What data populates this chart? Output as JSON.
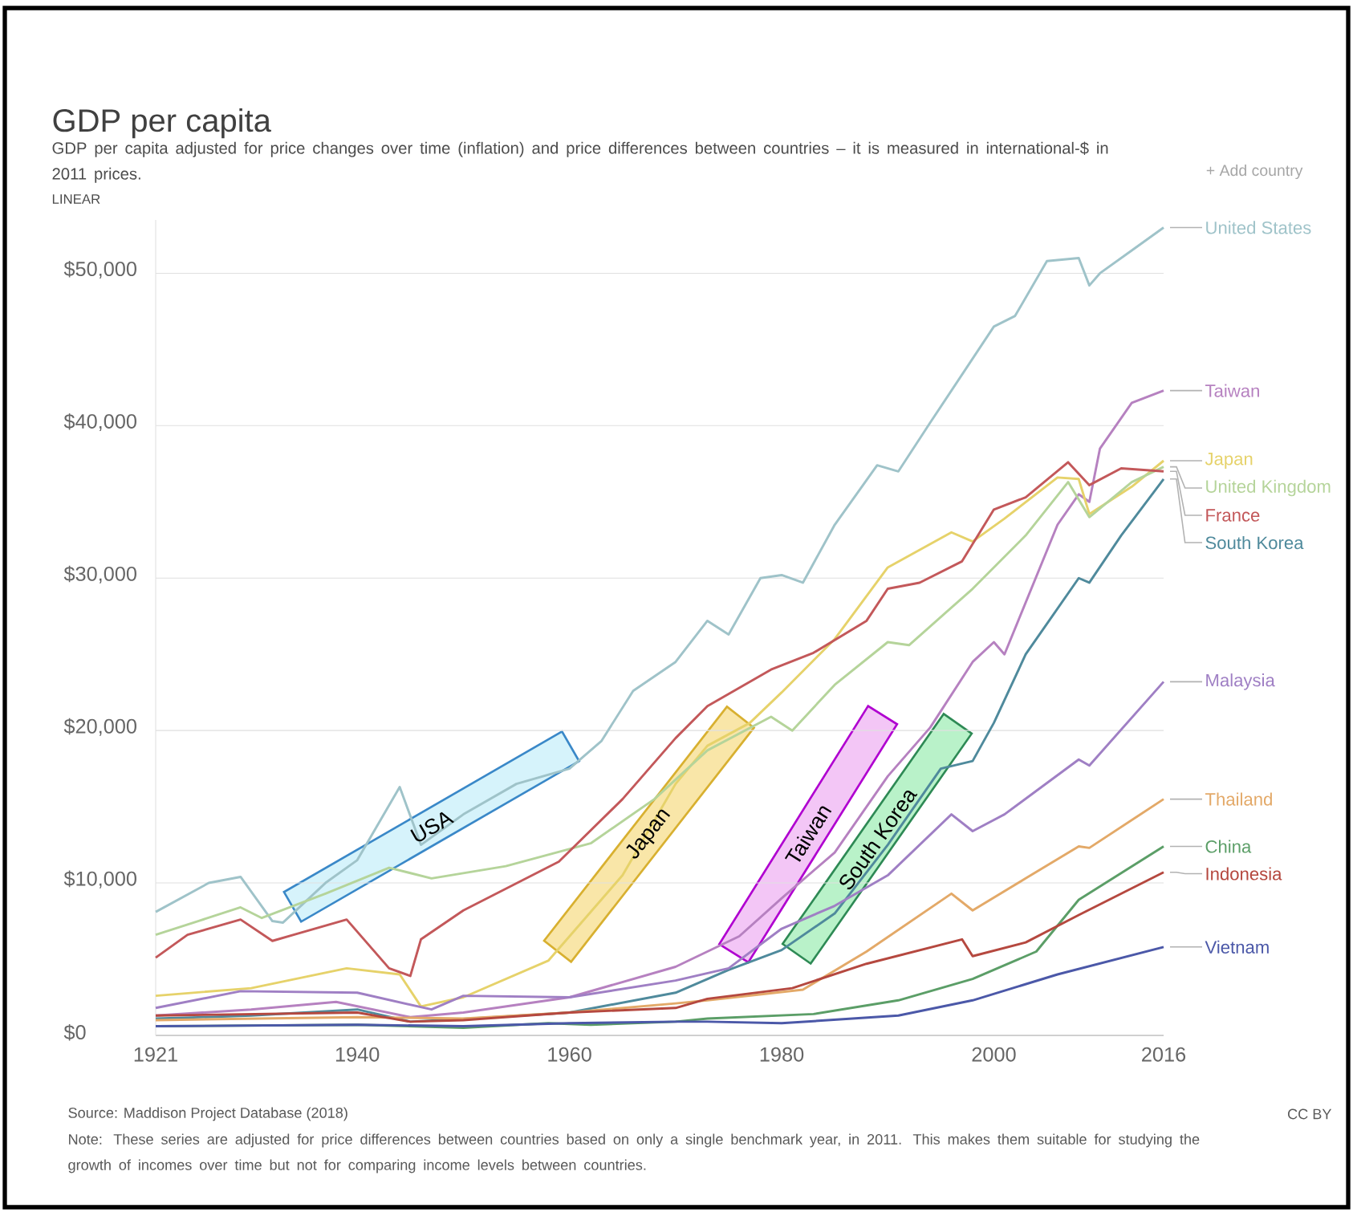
{
  "chart_data": {
    "type": "line",
    "title": "GDP per capita",
    "subtitle": "GDP per capita adjusted for price changes over time (inflation) and price differences between countries – it is measured in international-$ in 2011 prices.",
    "xlim": [
      1921,
      2016
    ],
    "xticks": [
      1921,
      1940,
      1960,
      1980,
      2000,
      2016
    ],
    "ylim": [
      0,
      53500
    ],
    "yticks": [
      {
        "value": 0,
        "label": "$0"
      },
      {
        "value": 10000,
        "label": "$10,000"
      },
      {
        "value": 20000,
        "label": "$20,000"
      },
      {
        "value": 30000,
        "label": "$30,000"
      },
      {
        "value": 40000,
        "label": "$40,000"
      },
      {
        "value": 50000,
        "label": "$50,000"
      }
    ],
    "grid": "y",
    "series": [
      {
        "name": "United States",
        "color": "#9fc3c9",
        "x": [
          1921,
          1926,
          1929,
          1932,
          1933,
          1937,
          1940,
          1944,
          1946,
          1950,
          1955,
          1960,
          1963,
          1966,
          1970,
          1973,
          1975,
          1978,
          1980,
          1982,
          1985,
          1989,
          1991,
          1994,
          2000,
          2002,
          2005,
          2008,
          2009,
          2010,
          2013,
          2016
        ],
        "values": [
          8100,
          10000,
          10400,
          7500,
          7400,
          10000,
          11500,
          16300,
          12500,
          14500,
          16500,
          17500,
          19300,
          22600,
          24500,
          27200,
          26300,
          30000,
          30200,
          29700,
          33500,
          37400,
          37000,
          40200,
          46500,
          47200,
          50800,
          51000,
          49200,
          50000,
          51500,
          53000
        ]
      },
      {
        "name": "Taiwan",
        "color": "#b681c0",
        "x": [
          1921,
          1930,
          1938,
          1945,
          1950,
          1960,
          1970,
          1976,
          1980,
          1985,
          1990,
          1994,
          1998,
          2000,
          2001,
          2006,
          2008,
          2009,
          2010,
          2013,
          2016
        ],
        "values": [
          1300,
          1700,
          2200,
          1200,
          1500,
          2500,
          4500,
          6500,
          9000,
          12000,
          17000,
          20200,
          24500,
          25800,
          25000,
          33500,
          35500,
          35000,
          38500,
          41500,
          42300
        ]
      },
      {
        "name": "Japan",
        "color": "#e6d26a",
        "x": [
          1921,
          1930,
          1939,
          1944,
          1946,
          1950,
          1958,
          1965,
          1970,
          1973,
          1977,
          1980,
          1985,
          1990,
          1996,
          1998,
          2001,
          2006,
          2008,
          2009,
          2013,
          2016
        ],
        "values": [
          2600,
          3100,
          4400,
          4000,
          1900,
          2500,
          4900,
          10500,
          16500,
          19000,
          20500,
          22500,
          26000,
          30700,
          33000,
          32400,
          33900,
          36600,
          36500,
          34200,
          36000,
          37700
        ]
      },
      {
        "name": "United Kingdom",
        "color": "#b5d49a",
        "x": [
          1921,
          1925,
          1929,
          1931,
          1937,
          1943,
          1947,
          1954,
          1962,
          1968,
          1973,
          1979,
          1981,
          1985,
          1990,
          1992,
          1998,
          2003,
          2007,
          2009,
          2013,
          2016
        ],
        "values": [
          6600,
          7500,
          8400,
          7700,
          9300,
          11000,
          10300,
          11100,
          12600,
          15500,
          18700,
          20900,
          20000,
          23000,
          25800,
          25600,
          29300,
          32800,
          36300,
          34000,
          36300,
          37300
        ]
      },
      {
        "name": "France",
        "color": "#c3585a",
        "x": [
          1921,
          1924,
          1929,
          1932,
          1934,
          1939,
          1943,
          1945,
          1946,
          1950,
          1959,
          1965,
          1970,
          1973,
          1979,
          1983,
          1988,
          1990,
          1993,
          1997,
          2000,
          2003,
          2007,
          2009,
          2012,
          2016
        ],
        "values": [
          5100,
          6600,
          7600,
          6200,
          6600,
          7600,
          4400,
          3900,
          6300,
          8200,
          11400,
          15500,
          19500,
          21600,
          24000,
          25100,
          27200,
          29300,
          29700,
          31100,
          34500,
          35300,
          37600,
          36100,
          37200,
          37000
        ]
      },
      {
        "name": "South Korea",
        "color": "#4f8a9c",
        "x": [
          1921,
          1930,
          1940,
          1945,
          1953,
          1960,
          1970,
          1975,
          1980,
          1985,
          1990,
          1995,
          1998,
          2000,
          2003,
          2008,
          2009,
          2012,
          2016
        ],
        "values": [
          1100,
          1300,
          1700,
          900,
          1200,
          1500,
          2800,
          4300,
          5600,
          8000,
          12500,
          17500,
          18000,
          20500,
          25000,
          30000,
          29700,
          32800,
          36500
        ]
      },
      {
        "name": "Malaysia",
        "color": "#9f7fc4",
        "x": [
          1921,
          1929,
          1940,
          1947,
          1950,
          1960,
          1970,
          1975,
          1980,
          1985,
          1990,
          1996,
          1998,
          2001,
          2008,
          2009,
          2016
        ],
        "values": [
          1800,
          2900,
          2800,
          1700,
          2600,
          2500,
          3600,
          4400,
          7000,
          8500,
          10500,
          14500,
          13400,
          14500,
          18100,
          17700,
          23200
        ]
      },
      {
        "name": "Thailand",
        "color": "#e3a968",
        "x": [
          1921,
          1940,
          1950,
          1960,
          1970,
          1973,
          1982,
          1988,
          1996,
          1998,
          2003,
          2008,
          2009,
          2016
        ],
        "values": [
          1000,
          1200,
          1100,
          1500,
          2100,
          2300,
          3000,
          5500,
          9300,
          8200,
          10300,
          12400,
          12300,
          15500
        ]
      },
      {
        "name": "China",
        "color": "#5b9e67",
        "x": [
          1921,
          1940,
          1950,
          1958,
          1962,
          1970,
          1973,
          1983,
          1991,
          1998,
          2004,
          2008,
          2016
        ],
        "values": [
          600,
          700,
          500,
          800,
          700,
          900,
          1100,
          1400,
          2300,
          3700,
          5500,
          8900,
          12400
        ]
      },
      {
        "name": "Indonesia",
        "color": "#b5483f",
        "x": [
          1921,
          1940,
          1945,
          1950,
          1960,
          1970,
          1973,
          1981,
          1988,
          1997,
          1998,
          2003,
          2008,
          2016
        ],
        "values": [
          1300,
          1500,
          900,
          1000,
          1500,
          1800,
          2400,
          3100,
          4700,
          6300,
          5200,
          6100,
          7900,
          10700
        ]
      },
      {
        "name": "Vietnam",
        "color": "#4b58a8",
        "x": [
          1921,
          1940,
          1950,
          1960,
          1970,
          1973,
          1980,
          1991,
          1998,
          2006,
          2016
        ],
        "values": [
          600,
          700,
          600,
          800,
          900,
          900,
          800,
          1300,
          2300,
          4000,
          5800
        ]
      }
    ],
    "annotations": [
      "LINEAR",
      "+ Add country",
      "Source: Maddison Project Database (2018)",
      "Note: These series are adjusted for price differences between countries based on only a single benchmark year, in 2011. This makes them suitable for studying the growth of incomes over time but not for comparing income levels between countries.",
      "CC BY",
      "USA",
      "Japan",
      "Taiwan",
      "South Korea"
    ]
  }
}
